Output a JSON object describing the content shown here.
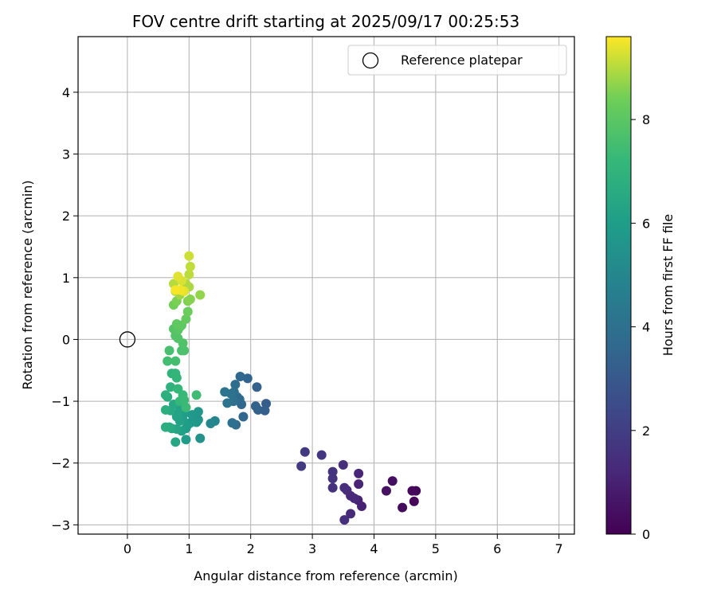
{
  "chart_data": {
    "type": "scatter",
    "title": "FOV centre drift starting at 2025/09/17 00:25:53",
    "xlabel": "Angular distance from reference (arcmin)",
    "ylabel": "Rotation from reference (arcmin)",
    "xlim": [
      -0.8,
      7.25
    ],
    "ylim": [
      -3.15,
      4.9
    ],
    "xticks": [
      0,
      1,
      2,
      3,
      4,
      5,
      6,
      7
    ],
    "yticks": [
      -3,
      -2,
      -1,
      0,
      1,
      2,
      3,
      4
    ],
    "grid": true,
    "legend": {
      "placement": "top-right",
      "entries": [
        "Reference platepar"
      ]
    },
    "reference_point": {
      "name": "Reference platepar",
      "x": 0,
      "y": 0
    },
    "colorbar": {
      "label": "Hours from first FF file",
      "colormap": "viridis",
      "range": [
        0,
        9.6
      ],
      "ticks": [
        0,
        2,
        4,
        6,
        8
      ]
    },
    "points": [
      {
        "x": 4.68,
        "y": -2.45,
        "c": 0.1
      },
      {
        "x": 4.65,
        "y": -2.62,
        "c": 0.15
      },
      {
        "x": 4.62,
        "y": -2.45,
        "c": 0.2
      },
      {
        "x": 4.46,
        "y": -2.72,
        "c": 0.3
      },
      {
        "x": 4.3,
        "y": -2.29,
        "c": 0.4
      },
      {
        "x": 4.2,
        "y": -2.45,
        "c": 0.5
      },
      {
        "x": 3.8,
        "y": -2.7,
        "c": 1.0
      },
      {
        "x": 3.74,
        "y": -2.6,
        "c": 1.05
      },
      {
        "x": 3.75,
        "y": -2.34,
        "c": 1.1
      },
      {
        "x": 3.75,
        "y": -2.17,
        "c": 1.15
      },
      {
        "x": 3.68,
        "y": -2.57,
        "c": 1.2
      },
      {
        "x": 3.62,
        "y": -2.53,
        "c": 1.25
      },
      {
        "x": 3.62,
        "y": -2.82,
        "c": 1.3
      },
      {
        "x": 3.56,
        "y": -2.44,
        "c": 1.35
      },
      {
        "x": 3.52,
        "y": -2.4,
        "c": 1.4
      },
      {
        "x": 3.52,
        "y": -2.92,
        "c": 1.45
      },
      {
        "x": 3.5,
        "y": -2.03,
        "c": 1.5
      },
      {
        "x": 3.33,
        "y": -2.4,
        "c": 1.55
      },
      {
        "x": 3.33,
        "y": -2.25,
        "c": 1.6
      },
      {
        "x": 3.33,
        "y": -2.14,
        "c": 1.65
      },
      {
        "x": 3.15,
        "y": -1.87,
        "c": 1.7
      },
      {
        "x": 2.88,
        "y": -1.82,
        "c": 1.8
      },
      {
        "x": 2.82,
        "y": -2.05,
        "c": 1.85
      },
      {
        "x": 2.25,
        "y": -1.04,
        "c": 3.2
      },
      {
        "x": 2.23,
        "y": -1.15,
        "c": 3.25
      },
      {
        "x": 2.12,
        "y": -1.14,
        "c": 3.3
      },
      {
        "x": 2.1,
        "y": -0.77,
        "c": 3.35
      },
      {
        "x": 2.08,
        "y": -1.08,
        "c": 3.4
      },
      {
        "x": 1.95,
        "y": -0.63,
        "c": 3.5
      },
      {
        "x": 1.88,
        "y": -1.25,
        "c": 3.55
      },
      {
        "x": 1.85,
        "y": -1.05,
        "c": 3.6
      },
      {
        "x": 1.83,
        "y": -0.6,
        "c": 3.65
      },
      {
        "x": 1.82,
        "y": -0.97,
        "c": 3.7
      },
      {
        "x": 1.78,
        "y": -0.93,
        "c": 3.75
      },
      {
        "x": 1.76,
        "y": -1.38,
        "c": 3.8
      },
      {
        "x": 1.75,
        "y": -0.73,
        "c": 3.85
      },
      {
        "x": 1.73,
        "y": -0.85,
        "c": 3.9
      },
      {
        "x": 1.72,
        "y": -1.0,
        "c": 3.95
      },
      {
        "x": 1.7,
        "y": -1.35,
        "c": 4.0
      },
      {
        "x": 1.68,
        "y": -0.88,
        "c": 4.05
      },
      {
        "x": 1.62,
        "y": -1.03,
        "c": 4.1
      },
      {
        "x": 1.58,
        "y": -0.85,
        "c": 4.15
      },
      {
        "x": 1.42,
        "y": -1.32,
        "c": 4.9
      },
      {
        "x": 1.35,
        "y": -1.36,
        "c": 5.0
      },
      {
        "x": 1.18,
        "y": -1.6,
        "c": 5.5
      },
      {
        "x": 1.15,
        "y": -1.3,
        "c": 5.6
      },
      {
        "x": 1.15,
        "y": -1.17,
        "c": 5.65
      },
      {
        "x": 1.12,
        "y": -1.34,
        "c": 5.7
      },
      {
        "x": 1.05,
        "y": -1.22,
        "c": 5.75
      },
      {
        "x": 1.02,
        "y": -1.35,
        "c": 5.8
      },
      {
        "x": 0.98,
        "y": -1.38,
        "c": 5.85
      },
      {
        "x": 0.95,
        "y": -1.62,
        "c": 5.9
      },
      {
        "x": 0.95,
        "y": -1.44,
        "c": 5.95
      },
      {
        "x": 0.92,
        "y": -1.2,
        "c": 6.0
      },
      {
        "x": 0.9,
        "y": -1.3,
        "c": 6.05
      },
      {
        "x": 0.88,
        "y": -1.48,
        "c": 6.1
      },
      {
        "x": 0.85,
        "y": -1.1,
        "c": 6.15
      },
      {
        "x": 0.85,
        "y": -1.32,
        "c": 6.2
      },
      {
        "x": 0.82,
        "y": -1.2,
        "c": 6.25
      },
      {
        "x": 0.8,
        "y": -1.25,
        "c": 6.3
      },
      {
        "x": 0.8,
        "y": -1.45,
        "c": 6.35
      },
      {
        "x": 0.78,
        "y": -1.66,
        "c": 6.4
      },
      {
        "x": 0.75,
        "y": -1.05,
        "c": 6.45
      },
      {
        "x": 0.72,
        "y": -1.44,
        "c": 6.5
      },
      {
        "x": 0.7,
        "y": -1.15,
        "c": 6.55
      },
      {
        "x": 0.68,
        "y": -1.42,
        "c": 6.6
      },
      {
        "x": 0.65,
        "y": -0.93,
        "c": 6.65
      },
      {
        "x": 0.62,
        "y": -1.42,
        "c": 6.7
      },
      {
        "x": 0.62,
        "y": -1.14,
        "c": 6.75
      },
      {
        "x": 0.62,
        "y": -0.9,
        "c": 6.8
      },
      {
        "x": 0.7,
        "y": -0.77,
        "c": 6.9
      },
      {
        "x": 0.72,
        "y": -0.55,
        "c": 7.0
      },
      {
        "x": 0.78,
        "y": -0.55,
        "c": 7.05
      },
      {
        "x": 0.8,
        "y": -0.62,
        "c": 7.1
      },
      {
        "x": 0.82,
        "y": -0.8,
        "c": 7.15
      },
      {
        "x": 0.85,
        "y": -1.0,
        "c": 7.2
      },
      {
        "x": 0.9,
        "y": -0.9,
        "c": 7.25
      },
      {
        "x": 0.92,
        "y": -0.98,
        "c": 7.3
      },
      {
        "x": 0.95,
        "y": -1.1,
        "c": 7.35
      },
      {
        "x": 1.12,
        "y": -0.9,
        "c": 7.4
      },
      {
        "x": 0.65,
        "y": -0.35,
        "c": 7.5
      },
      {
        "x": 0.78,
        "y": -0.35,
        "c": 7.55
      },
      {
        "x": 0.68,
        "y": -0.18,
        "c": 7.6
      },
      {
        "x": 0.88,
        "y": -0.18,
        "c": 7.65
      },
      {
        "x": 0.92,
        "y": -0.18,
        "c": 7.7
      },
      {
        "x": 0.9,
        "y": -0.06,
        "c": 7.75
      },
      {
        "x": 0.82,
        "y": 0.02,
        "c": 7.8
      },
      {
        "x": 0.78,
        "y": 0.06,
        "c": 7.85
      },
      {
        "x": 0.75,
        "y": 0.17,
        "c": 7.9
      },
      {
        "x": 0.82,
        "y": 0.15,
        "c": 7.95
      },
      {
        "x": 0.85,
        "y": 0.2,
        "c": 8.0
      },
      {
        "x": 0.88,
        "y": 0.23,
        "c": 8.05
      },
      {
        "x": 0.8,
        "y": 0.25,
        "c": 8.1
      },
      {
        "x": 0.95,
        "y": 0.33,
        "c": 8.2
      },
      {
        "x": 0.98,
        "y": 0.45,
        "c": 8.3
      },
      {
        "x": 0.75,
        "y": 0.56,
        "c": 8.4
      },
      {
        "x": 0.8,
        "y": 0.62,
        "c": 8.5
      },
      {
        "x": 0.98,
        "y": 0.62,
        "c": 8.55
      },
      {
        "x": 1.02,
        "y": 0.65,
        "c": 8.6
      },
      {
        "x": 1.18,
        "y": 0.72,
        "c": 8.7
      },
      {
        "x": 0.85,
        "y": 0.72,
        "c": 8.8
      },
      {
        "x": 0.78,
        "y": 0.78,
        "c": 8.85
      },
      {
        "x": 1.0,
        "y": 0.85,
        "c": 8.9
      },
      {
        "x": 0.95,
        "y": 0.9,
        "c": 8.95
      },
      {
        "x": 0.75,
        "y": 0.9,
        "c": 9.0
      },
      {
        "x": 1.0,
        "y": 1.05,
        "c": 9.05
      },
      {
        "x": 1.02,
        "y": 1.18,
        "c": 9.1
      },
      {
        "x": 1.0,
        "y": 1.35,
        "c": 9.2
      },
      {
        "x": 0.88,
        "y": 0.95,
        "c": 9.3
      },
      {
        "x": 0.82,
        "y": 1.02,
        "c": 9.35
      },
      {
        "x": 0.92,
        "y": 0.78,
        "c": 9.4
      },
      {
        "x": 0.86,
        "y": 0.8,
        "c": 9.5
      },
      {
        "x": 0.78,
        "y": 0.8,
        "c": 9.55
      }
    ]
  }
}
